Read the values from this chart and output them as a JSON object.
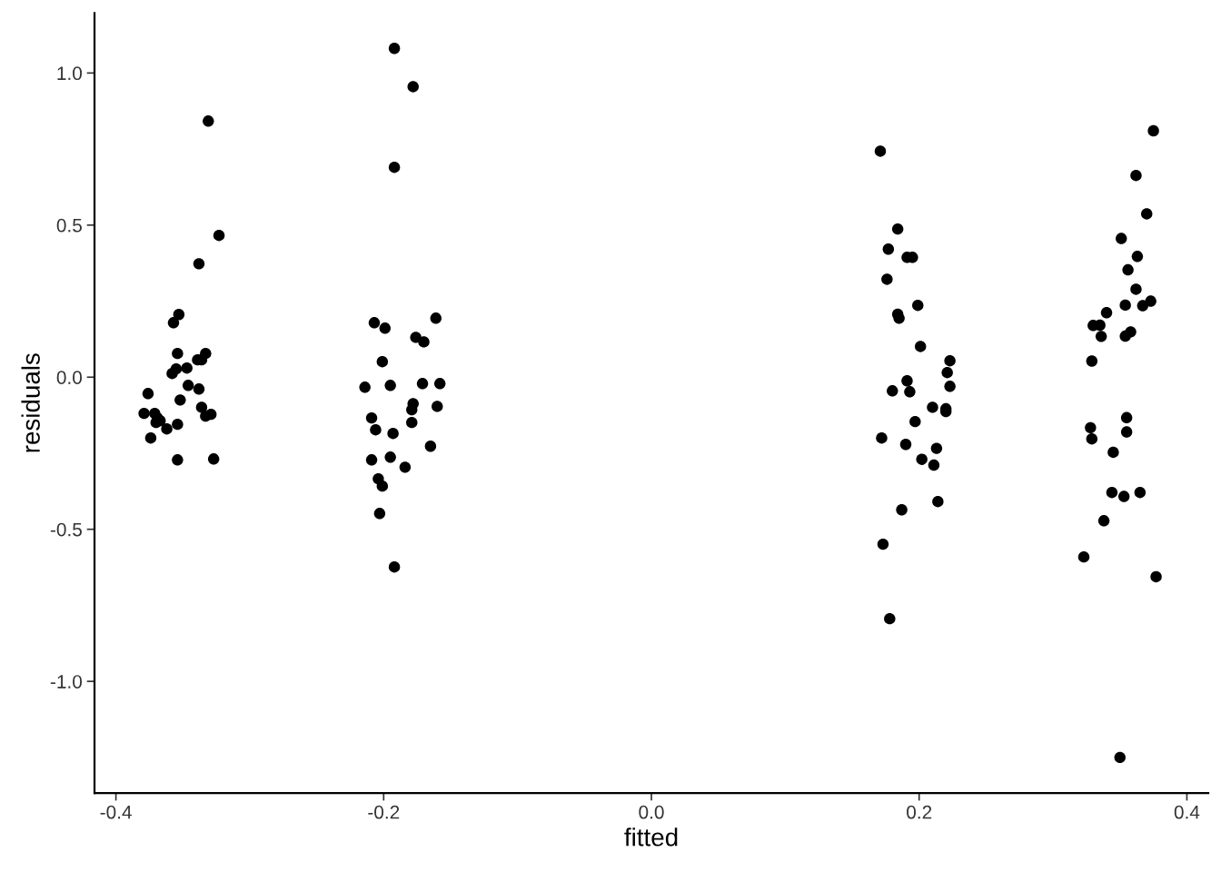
{
  "chart_data": {
    "type": "scatter",
    "xlabel": "fitted",
    "ylabel": "residuals",
    "xlim": [
      -0.416,
      0.416
    ],
    "ylim": [
      -1.367,
      1.197
    ],
    "xticks": [
      -0.4,
      -0.2,
      {
        "value": 0,
        "label": "0.0"
      },
      0.2,
      0.4
    ],
    "yticks": [
      {
        "value": -1,
        "label": "-1.0"
      },
      -0.5,
      {
        "value": 0,
        "label": "0.0"
      },
      0.5,
      {
        "value": 1,
        "label": "1.0"
      }
    ],
    "grid": false,
    "legend": false,
    "marker": "circle",
    "series": [
      {
        "color": "#000000",
        "x": [
          -0.331,
          -0.323,
          -0.338,
          -0.353,
          -0.357,
          -0.376,
          -0.374,
          -0.371,
          -0.369,
          -0.37,
          -0.354,
          -0.358,
          -0.355,
          -0.347,
          -0.352,
          -0.339,
          -0.336,
          -0.333,
          -0.338,
          -0.336,
          -0.333,
          -0.329,
          -0.354,
          -0.362,
          -0.354,
          -0.327,
          -0.367,
          -0.346,
          -0.379,
          -0.192,
          -0.178,
          -0.192,
          -0.207,
          -0.199,
          -0.161,
          -0.176,
          -0.17,
          -0.201,
          -0.214,
          -0.195,
          -0.171,
          -0.158,
          -0.209,
          -0.206,
          -0.193,
          -0.178,
          -0.179,
          -0.179,
          -0.165,
          -0.209,
          -0.195,
          -0.184,
          -0.204,
          -0.201,
          -0.203,
          -0.192,
          -0.16,
          0.171,
          0.184,
          0.177,
          0.176,
          0.191,
          0.195,
          0.184,
          0.185,
          0.199,
          0.201,
          0.223,
          0.221,
          0.223,
          0.191,
          0.18,
          0.193,
          0.21,
          0.22,
          0.22,
          0.197,
          0.172,
          0.19,
          0.213,
          0.202,
          0.211,
          0.214,
          0.187,
          0.173,
          0.178,
          0.375,
          0.362,
          0.37,
          0.351,
          0.363,
          0.356,
          0.362,
          0.354,
          0.367,
          0.373,
          0.34,
          0.33,
          0.335,
          0.336,
          0.354,
          0.358,
          0.329,
          0.355,
          0.328,
          0.329,
          0.355,
          0.345,
          0.344,
          0.353,
          0.365,
          0.338,
          0.323,
          0.377,
          0.35
        ],
        "values": [
          0.842,
          0.466,
          0.373,
          0.206,
          0.179,
          -0.054,
          -0.2,
          -0.119,
          -0.134,
          -0.149,
          0.078,
          0.012,
          0.027,
          0.03,
          -0.075,
          0.057,
          0.057,
          0.078,
          -0.039,
          -0.099,
          -0.128,
          -0.122,
          -0.155,
          -0.17,
          -0.272,
          -0.269,
          -0.143,
          -0.027,
          -0.119,
          1.081,
          0.955,
          0.69,
          0.179,
          0.161,
          0.194,
          0.131,
          0.116,
          0.051,
          -0.033,
          -0.027,
          -0.021,
          -0.021,
          -0.134,
          -0.173,
          -0.185,
          -0.087,
          -0.107,
          -0.149,
          -0.227,
          -0.272,
          -0.263,
          -0.296,
          -0.334,
          -0.358,
          -0.448,
          -0.624,
          -0.096,
          0.743,
          0.487,
          0.421,
          0.322,
          0.394,
          0.394,
          0.207,
          0.194,
          0.236,
          0.101,
          0.054,
          0.015,
          -0.03,
          -0.012,
          -0.045,
          -0.048,
          -0.099,
          -0.104,
          -0.113,
          -0.146,
          -0.2,
          -0.221,
          -0.234,
          -0.27,
          -0.289,
          -0.409,
          -0.436,
          -0.549,
          -0.794,
          0.81,
          0.663,
          0.537,
          0.456,
          0.397,
          0.353,
          0.289,
          0.237,
          0.235,
          0.25,
          0.212,
          0.17,
          0.171,
          0.134,
          0.135,
          0.149,
          0.053,
          -0.133,
          -0.166,
          -0.203,
          -0.18,
          -0.247,
          -0.379,
          -0.392,
          -0.379,
          -0.472,
          -0.591,
          -0.656,
          -1.25
        ]
      }
    ]
  }
}
